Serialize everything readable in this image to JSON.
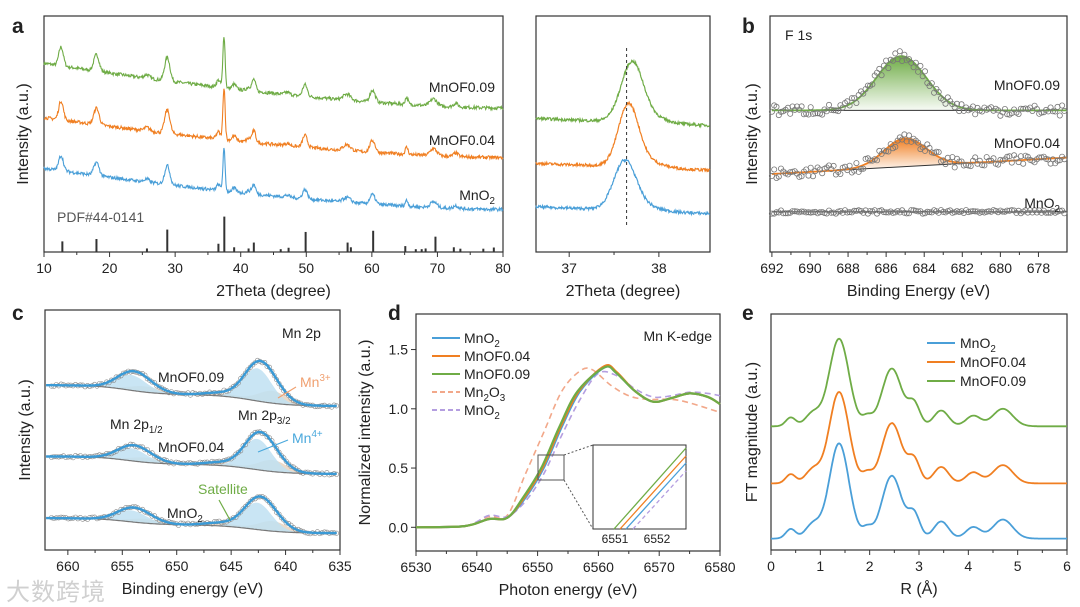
{
  "watermark": "大数跨境",
  "colors": {
    "blue": "#4a9fd8",
    "orange": "#f07f22",
    "green": "#6fac46",
    "mn2o3": "#f2a88a",
    "mno2_ref": "#b49ee0",
    "stick": "#333333",
    "circle": "#777777",
    "mn4_fill": "#bfe0f2",
    "mn3_fill": "#e8d3bf"
  },
  "chart_data": [
    {
      "panel": "a",
      "type": "line",
      "xlabel": "2Theta (degree)",
      "ylabel": "Intensity (a.u.)",
      "xlim": [
        10,
        80
      ],
      "ylim": [
        0,
        100
      ],
      "xticks": [
        10,
        20,
        30,
        40,
        50,
        60,
        70,
        80
      ],
      "reference_label": "PDF#44-0141",
      "reference_sticks": [
        [
          12.8,
          4.5
        ],
        [
          18.0,
          5.5
        ],
        [
          25.7,
          1.5
        ],
        [
          28.8,
          9.5
        ],
        [
          36.6,
          3.5
        ],
        [
          37.5,
          15
        ],
        [
          39.0,
          2
        ],
        [
          41.2,
          1.5
        ],
        [
          42.0,
          4
        ],
        [
          46.1,
          1.2
        ],
        [
          47.3,
          1.8
        ],
        [
          49.9,
          8.5
        ],
        [
          56.3,
          4
        ],
        [
          56.8,
          2
        ],
        [
          60.2,
          9
        ],
        [
          65.1,
          2.5
        ],
        [
          66.7,
          1.2
        ],
        [
          67.6,
          1.2
        ],
        [
          68.2,
          1.5
        ],
        [
          69.7,
          6.5
        ],
        [
          72.5,
          2
        ],
        [
          73.5,
          1.4
        ],
        [
          77.0,
          1.4
        ],
        [
          78.6,
          1.9
        ]
      ],
      "curve_peaks": [
        [
          12.6,
          8,
          0.35
        ],
        [
          18.0,
          7,
          0.4
        ],
        [
          25.7,
          1.5,
          0.4
        ],
        [
          28.8,
          10,
          0.4
        ],
        [
          36.6,
          3,
          0.3
        ],
        [
          37.45,
          22,
          0.17
        ],
        [
          39.0,
          2,
          0.3
        ],
        [
          41.2,
          1.5,
          0.3
        ],
        [
          42.0,
          5,
          0.28
        ],
        [
          47.1,
          1,
          0.4
        ],
        [
          49.8,
          5,
          0.35
        ],
        [
          56.2,
          2.5,
          0.55
        ],
        [
          60.1,
          5,
          0.4
        ],
        [
          65.3,
          3,
          0.22
        ],
        [
          69.4,
          3,
          0.5
        ],
        [
          72.8,
          1.5,
          0.35
        ]
      ],
      "series": [
        {
          "name": "MnOF0.09",
          "label": "MnOF0.09",
          "color": "#6fac46",
          "baseline": [
            80,
            61
          ],
          "scale": 1.0
        },
        {
          "name": "MnOF0.04",
          "label": "MnOF0.04",
          "color": "#f07f22",
          "baseline": [
            57,
            40
          ],
          "scale": 1.0
        },
        {
          "name": "MnO2",
          "label": {
            "t": "MnO",
            "sub": "2"
          },
          "color": "#4a9fd8",
          "baseline": [
            35.5,
            18
          ],
          "scale": 0.8
        }
      ]
    },
    {
      "panel": "a-zoom",
      "type": "line",
      "xlabel": "2Theta (degree)",
      "xlim": [
        36.63,
        38.57
      ],
      "ylim": [
        0,
        100
      ],
      "xticks": [
        37,
        38
      ],
      "reference_line": 37.64,
      "series": [
        {
          "name": "MnOF0.09",
          "color": "#6fac46",
          "baseline": 56,
          "center": 37.7,
          "height": 23,
          "width": 0.12
        },
        {
          "name": "MnOF0.04",
          "color": "#f07f22",
          "baseline": 37,
          "center": 37.66,
          "height": 24,
          "width": 0.11
        },
        {
          "name": "MnO2",
          "color": "#4a9fd8",
          "baseline": 18.6,
          "center": 37.62,
          "height": 19,
          "width": 0.12
        }
      ]
    },
    {
      "panel": "b",
      "type": "scatter",
      "title": "F 1s",
      "xlabel": "Binding Energy (eV)",
      "ylabel": "Intensity (a.u.)",
      "xlim": [
        692.1,
        676.5
      ],
      "ylim": [
        0,
        100
      ],
      "xticks": [
        692,
        690,
        688,
        686,
        684,
        682,
        680,
        678
      ],
      "series": [
        {
          "name": "MnOF0.09",
          "label": "MnOF0.09",
          "color": "#6fac46",
          "baseline": [
            60,
            60
          ],
          "peak": [
            685.2,
            23,
            1.3
          ]
        },
        {
          "name": "MnOF0.04",
          "label": "MnOF0.04",
          "color": "#f07f22",
          "baseline": [
            33,
            40
          ],
          "peak": [
            685.0,
            12,
            1.1
          ]
        },
        {
          "name": "MnO2",
          "label": {
            "t": "MnO",
            "sub": "2"
          },
          "color": "#777777",
          "baseline": [
            17,
            17
          ],
          "peak": null
        }
      ]
    },
    {
      "panel": "c",
      "type": "line",
      "xlabel": "Binding energy (eV)",
      "ylabel": "Intensity (a.u.)",
      "xlim": [
        662.1,
        635
      ],
      "ylim": [
        0,
        100
      ],
      "xticks": [
        660,
        655,
        650,
        645,
        640,
        635
      ],
      "annotations": [
        {
          "t": "Mn 2p"
        },
        {
          "t": "MnOF0.09"
        },
        {
          "t": "Mn 2p",
          "sub": "1/2"
        },
        {
          "t": "Mn 2p",
          "sub": "3/2"
        },
        {
          "t": "MnOF0.04"
        },
        {
          "t": "Mn",
          "sup": "3+",
          "color": "#f0a070"
        },
        {
          "t": "Mn",
          "sup": "4+",
          "color": "#4aa8dc"
        },
        {
          "t": "Satellite",
          "color": "#6fac46"
        },
        {
          "t": "MnO",
          "sub": "2"
        }
      ],
      "series": [
        {
          "name": "MnOF0.09",
          "color": "#3a9ad6",
          "baseline": [
            68.7,
            60
          ],
          "p12": 8,
          "p32": 17
        },
        {
          "name": "MnOF0.04",
          "color": "#3a9ad6",
          "baseline": [
            39,
            31.7
          ],
          "p12": 6.5,
          "p32": 16
        },
        {
          "name": "MnO2",
          "color": "#3a9ad6",
          "baseline": [
            13.3,
            7
          ],
          "p12": 6,
          "p32": 14
        }
      ],
      "peak_positions": {
        "2p1/2": 654.2,
        "2p3/2": 642.6
      }
    },
    {
      "panel": "d",
      "type": "line",
      "title": "Mn K-edge",
      "xlabel": "Photon energy (eV)",
      "ylabel": "Normalized intensity (a.u.)",
      "xlim": [
        6530,
        6580
      ],
      "ylim": [
        -0.2,
        1.8
      ],
      "xticks": [
        6530,
        6540,
        6550,
        6560,
        6570,
        6580
      ],
      "yticks": [
        0.0,
        0.5,
        1.0,
        1.5
      ],
      "yticklabels": [
        "0.0",
        "0.5",
        "1.0",
        "1.5"
      ],
      "inset_xticks": [
        "6551",
        "6552"
      ],
      "series": [
        {
          "name": "MnO2",
          "label": {
            "t": "MnO",
            "sub": "2"
          },
          "color": "#4a9fd8",
          "dash": false,
          "shift": 0,
          "points": [
            [
              6530,
              0
            ],
            [
              6538,
              0.01
            ],
            [
              6542,
              0.07
            ],
            [
              6545,
              0.08
            ],
            [
              6548,
              0.25
            ],
            [
              6551,
              0.5
            ],
            [
              6554,
              0.85
            ],
            [
              6557,
              1.15
            ],
            [
              6561,
              1.35
            ],
            [
              6563,
              1.3
            ],
            [
              6566,
              1.15
            ],
            [
              6569,
              1.06
            ],
            [
              6572,
              1.09
            ],
            [
              6575,
              1.13
            ],
            [
              6578,
              1.1
            ],
            [
              6580,
              1.04
            ]
          ]
        },
        {
          "name": "MnOF0.04",
          "label": "MnOF0.04",
          "color": "#f07f22",
          "dash": false,
          "shift": -0.2,
          "points": [
            [
              6530,
              0
            ],
            [
              6538,
              0.01
            ],
            [
              6542,
              0.07
            ],
            [
              6545,
              0.08
            ],
            [
              6548,
              0.25
            ],
            [
              6551,
              0.5
            ],
            [
              6554,
              0.85
            ],
            [
              6557,
              1.15
            ],
            [
              6561,
              1.36
            ],
            [
              6563,
              1.31
            ],
            [
              6566,
              1.15
            ],
            [
              6569,
              1.06
            ],
            [
              6572,
              1.09
            ],
            [
              6575,
              1.13
            ],
            [
              6578,
              1.1
            ],
            [
              6580,
              1.04
            ]
          ]
        },
        {
          "name": "MnOF0.09",
          "label": "MnOF0.09",
          "color": "#6fac46",
          "dash": false,
          "shift": -0.4,
          "points": [
            [
              6530,
              0
            ],
            [
              6538,
              0.01
            ],
            [
              6542,
              0.07
            ],
            [
              6545,
              0.08
            ],
            [
              6548,
              0.25
            ],
            [
              6551,
              0.5
            ],
            [
              6554,
              0.85
            ],
            [
              6557,
              1.15
            ],
            [
              6561,
              1.35
            ],
            [
              6563,
              1.3
            ],
            [
              6566,
              1.15
            ],
            [
              6569,
              1.06
            ],
            [
              6572,
              1.09
            ],
            [
              6575,
              1.13
            ],
            [
              6578,
              1.1
            ],
            [
              6580,
              1.04
            ]
          ]
        },
        {
          "name": "Mn2O3",
          "label": {
            "t": "Mn",
            "sub": "2",
            "t2": "O",
            "sub2": "3"
          },
          "color": "#f2a88a",
          "dash": true,
          "shift": 0,
          "points": [
            [
              6530,
              0
            ],
            [
              6538,
              0.01
            ],
            [
              6542,
              0.09
            ],
            [
              6545,
              0.1
            ],
            [
              6548,
              0.45
            ],
            [
              6551,
              0.8
            ],
            [
              6554,
              1.15
            ],
            [
              6557,
              1.32
            ],
            [
              6559,
              1.33
            ],
            [
              6562,
              1.2
            ],
            [
              6565,
              1.11
            ],
            [
              6568,
              1.08
            ],
            [
              6572,
              1.08
            ],
            [
              6575,
              1.05
            ],
            [
              6580,
              0.97
            ]
          ]
        },
        {
          "name": "MnO2 reference",
          "label": {
            "t": "MnO",
            "sub": "2"
          },
          "color": "#b49ee0",
          "dash": true,
          "shift": 0,
          "points": [
            [
              6530,
              0
            ],
            [
              6538,
              0.01
            ],
            [
              6542,
              0.1
            ],
            [
              6545,
              0.09
            ],
            [
              6548,
              0.22
            ],
            [
              6551,
              0.45
            ],
            [
              6554,
              0.78
            ],
            [
              6557,
              1.08
            ],
            [
              6560,
              1.3
            ],
            [
              6563,
              1.28
            ],
            [
              6566,
              1.17
            ],
            [
              6569,
              1.1
            ],
            [
              6572,
              1.11
            ],
            [
              6575,
              1.14
            ],
            [
              6578,
              1.13
            ],
            [
              6580,
              1.11
            ]
          ]
        }
      ]
    },
    {
      "panel": "e",
      "type": "line",
      "xlabel": "R (Å)",
      "ylabel": "FT magnitude (a.u.)",
      "xlim": [
        0,
        6
      ],
      "ylim": [
        -0.12,
        2.36
      ],
      "xticks": [
        0,
        1,
        2,
        3,
        4,
        5,
        6
      ],
      "peaks": [
        [
          0.4,
          0.1,
          0.1
        ],
        [
          0.85,
          0.15,
          0.15
        ],
        [
          1.38,
          1.0,
          0.2
        ],
        [
          1.95,
          0.1,
          0.1
        ],
        [
          2.45,
          0.66,
          0.2
        ],
        [
          2.9,
          0.25,
          0.12
        ],
        [
          3.45,
          0.18,
          0.15
        ],
        [
          4.1,
          0.12,
          0.15
        ],
        [
          4.7,
          0.2,
          0.2
        ]
      ],
      "series": [
        {
          "name": "MnO2",
          "label": {
            "t": "MnO",
            "sub": "2"
          },
          "color": "#4a9fd8",
          "offset": 0,
          "scale": 1.0
        },
        {
          "name": "MnOF0.04",
          "label": "MnOF0.04",
          "color": "#f07f22",
          "offset": 0.58,
          "scale": 0.96
        },
        {
          "name": "MnOF0.09",
          "label": "MnOF0.09",
          "color": "#6fac46",
          "offset": 1.18,
          "scale": 0.92
        }
      ]
    }
  ]
}
